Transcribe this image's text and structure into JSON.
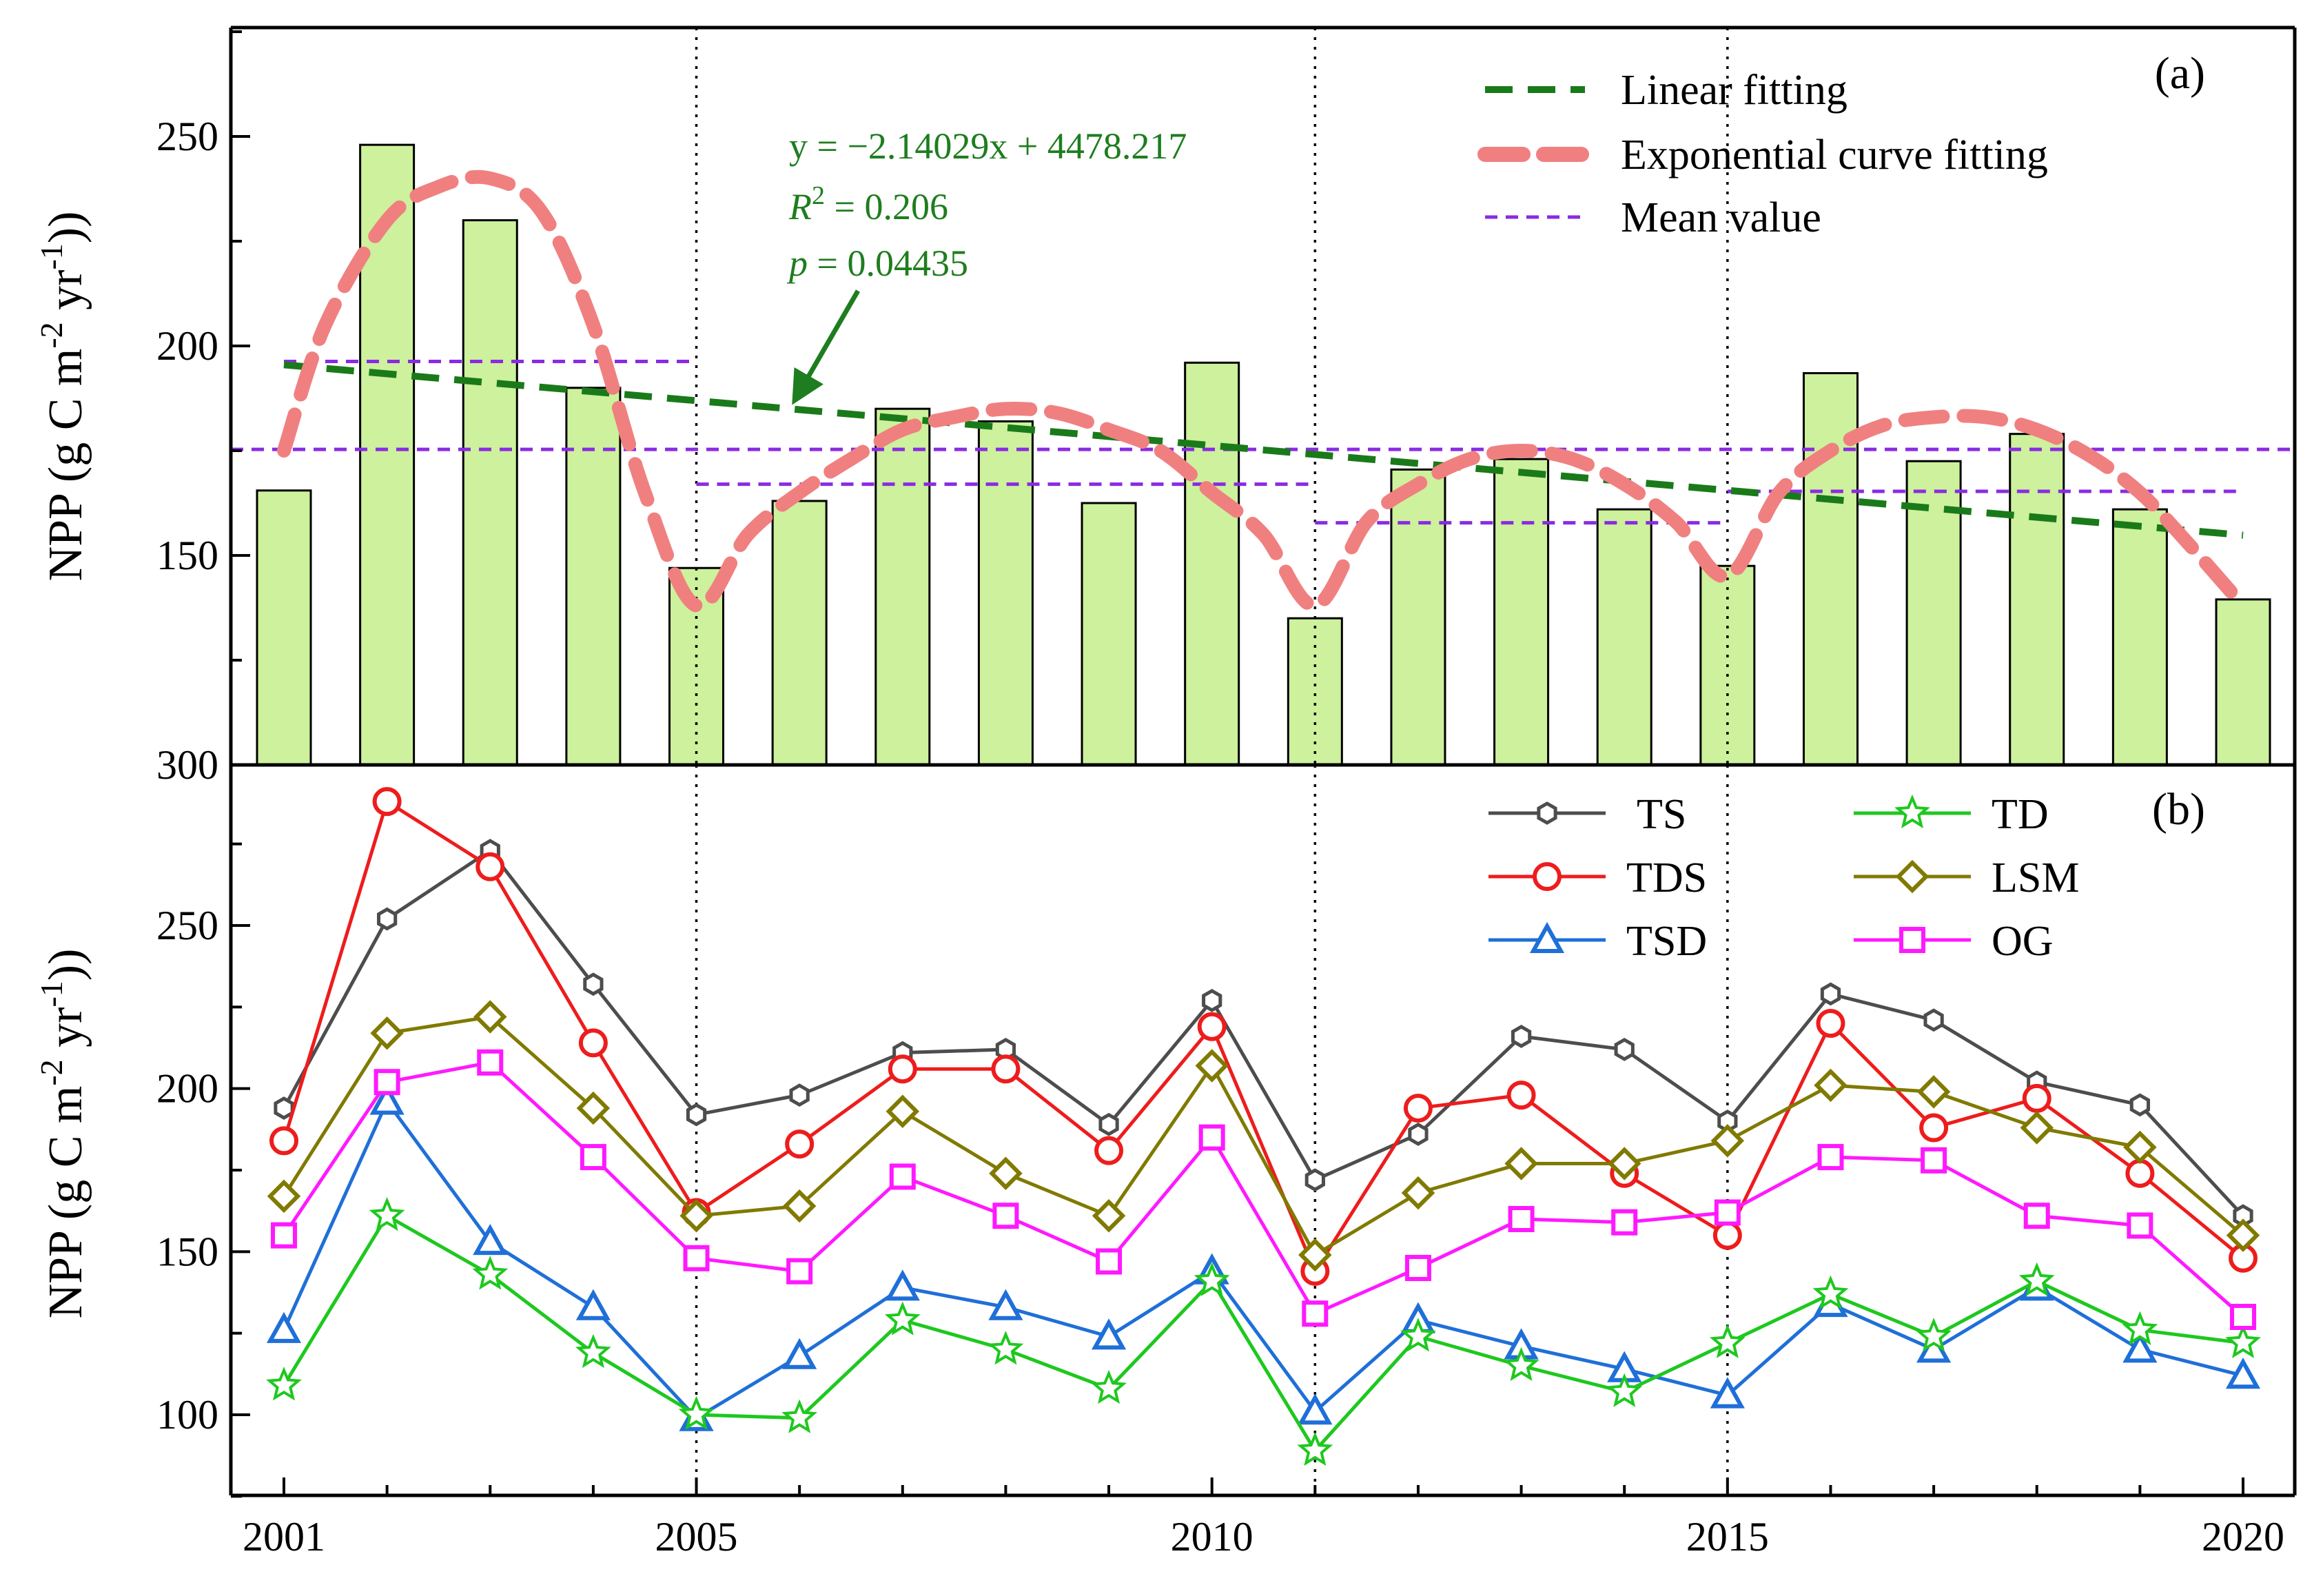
{
  "chart_data": [
    {
      "panel": "(a)",
      "type": "bar",
      "ylabel": "NPP (g C m-2 yr-1))",
      "ylabel_parts": {
        "main": "NPP (g C m",
        "sup1": "-2",
        "mid": " yr",
        "sup2": "-1",
        "end": "))"
      },
      "y_tick_labels": [
        {
          "value": 300,
          "label": "300"
        },
        {
          "value": 150,
          "label": "150"
        },
        {
          "value": 200,
          "label": "200"
        },
        {
          "value": 250,
          "label": "250"
        }
      ],
      "ylim": [
        100,
        275
      ],
      "x": [
        2001,
        2002,
        2003,
        2004,
        2005,
        2006,
        2007,
        2008,
        2009,
        2010,
        2011,
        2012,
        2013,
        2014,
        2015,
        2016,
        2017,
        2018,
        2019,
        2020
      ],
      "values": [
        165.5,
        248,
        230,
        190,
        147,
        163,
        185,
        182,
        162.5,
        196,
        135,
        170.5,
        173,
        161,
        147.5,
        193.5,
        172.5,
        179,
        161,
        139.5
      ],
      "bar_color": "#cdf19c",
      "linear_fit": {
        "label": "Linear fitting",
        "slope": -2.14029,
        "intercept": 4478.217,
        "color": "#1a7a1a"
      },
      "exp_fit": {
        "label": "Exponential curve fitting",
        "color": "#f08080",
        "points": [
          [
            2001,
            175
          ],
          [
            2001.4,
            205
          ],
          [
            2002,
            230
          ],
          [
            2002.5,
            238
          ],
          [
            2003,
            240
          ],
          [
            2003.5,
            232
          ],
          [
            2004,
            205
          ],
          [
            2004.5,
            165
          ],
          [
            2005,
            138
          ],
          [
            2005.5,
            155
          ],
          [
            2006,
            165
          ],
          [
            2006.5,
            173
          ],
          [
            2007,
            180
          ],
          [
            2007.5,
            183
          ],
          [
            2008,
            185
          ],
          [
            2008.5,
            184
          ],
          [
            2009,
            180
          ],
          [
            2009.5,
            175
          ],
          [
            2010,
            165
          ],
          [
            2010.5,
            155
          ],
          [
            2011,
            138
          ],
          [
            2011.5,
            158
          ],
          [
            2012,
            167
          ],
          [
            2012.5,
            173
          ],
          [
            2013,
            175
          ],
          [
            2013.5,
            173
          ],
          [
            2014,
            167
          ],
          [
            2014.5,
            158
          ],
          [
            2015,
            145
          ],
          [
            2015.5,
            165
          ],
          [
            2016,
            175
          ],
          [
            2016.5,
            181
          ],
          [
            2017,
            183
          ],
          [
            2017.5,
            183
          ],
          [
            2018,
            180
          ],
          [
            2018.5,
            174
          ],
          [
            2019,
            165
          ],
          [
            2019.5,
            152
          ],
          [
            2020,
            138
          ]
        ]
      },
      "mean_value": {
        "label": "Mean value",
        "color": "#8a2be2",
        "overall": 175.3,
        "segments": [
          {
            "x0": 2001,
            "x1": 2005,
            "y": 196.3
          },
          {
            "x0": 2005,
            "x1": 2011,
            "y": 167.0
          },
          {
            "x0": 2011,
            "x1": 2015,
            "y": 157.8
          },
          {
            "x0": 2015,
            "x1": 2020,
            "y": 165.3
          }
        ]
      },
      "annotation": {
        "equation": "y = −2.14029x + 4478.217",
        "r2_prefix": "R",
        "r2_sup": "2",
        "r2_rest": " = 0.206",
        "p_prefix": "p",
        "p_rest": " = 0.04435",
        "arrow_target_x": 2006.0,
        "arrow_target_y": 186
      }
    },
    {
      "panel": "(b)",
      "type": "line",
      "ylabel": "NPP (g C m-2 yr-1))",
      "ylabel_parts": {
        "main": "NPP (g C m",
        "sup1": "-2",
        "mid": " yr",
        "sup2": "-1",
        "end": "))"
      },
      "xlabel": "",
      "x_tick_labels": [
        {
          "value": 2001,
          "label": "2001"
        },
        {
          "value": 2005,
          "label": "2005"
        },
        {
          "value": 2010,
          "label": "2010"
        },
        {
          "value": 2015,
          "label": "2015"
        },
        {
          "value": 2020,
          "label": "2020"
        }
      ],
      "y_tick_labels": [
        {
          "value": 100,
          "label": "100"
        },
        {
          "value": 150,
          "label": "150"
        },
        {
          "value": 200,
          "label": "200"
        },
        {
          "value": 250,
          "label": "250"
        },
        {
          "value": 300,
          "label": "300"
        }
      ],
      "ylim": [
        75,
        300
      ],
      "x": [
        2001,
        2002,
        2003,
        2004,
        2005,
        2006,
        2007,
        2008,
        2009,
        2010,
        2011,
        2012,
        2013,
        2014,
        2015,
        2016,
        2017,
        2018,
        2019,
        2020
      ],
      "series": [
        {
          "name": "TS",
          "color": "#4d4d4d",
          "marker": "hexagon",
          "values": [
            194,
            252,
            273,
            232,
            192,
            198,
            211,
            212,
            189,
            227,
            172,
            186,
            216,
            212,
            190,
            229,
            221,
            202,
            195,
            161
          ]
        },
        {
          "name": "TDS",
          "color": "#ee1c1c",
          "marker": "circle",
          "values": [
            184,
            288,
            268,
            214,
            162,
            183,
            206,
            206,
            181,
            219,
            144,
            194,
            198,
            174,
            155,
            220,
            188,
            197,
            174,
            148
          ]
        },
        {
          "name": "TSD",
          "color": "#1f6fd8",
          "marker": "triangle",
          "values": [
            126,
            196,
            153,
            133,
            99,
            118,
            139,
            133,
            124,
            144,
            101,
            129,
            121,
            114,
            106,
            134,
            120,
            139,
            120,
            112
          ]
        },
        {
          "name": "TD",
          "color": "#1ec81e",
          "marker": "star",
          "values": [
            109,
            161,
            143,
            119,
            100,
            99,
            129,
            120,
            108,
            141,
            89,
            124,
            115,
            107,
            122,
            137,
            124,
            141,
            126,
            122
          ]
        },
        {
          "name": "LSM",
          "color": "#807a00",
          "marker": "diamond",
          "values": [
            167,
            217,
            222,
            194,
            161,
            164,
            193,
            174,
            161,
            207,
            149,
            168,
            177,
            177,
            184,
            201,
            199,
            188,
            182,
            155
          ]
        },
        {
          "name": "OG",
          "color": "#ff19ff",
          "marker": "square",
          "values": [
            155,
            202,
            208,
            179,
            148,
            144,
            173,
            161,
            147,
            185,
            131,
            145,
            160,
            159,
            162,
            179,
            178,
            161,
            158,
            130
          ]
        }
      ]
    }
  ],
  "page": {
    "vertical_markers": [
      2005,
      2011,
      2015
    ]
  }
}
